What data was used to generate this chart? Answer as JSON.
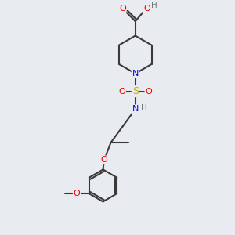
{
  "bg_color": "#e8ecf0",
  "atom_colors": {
    "C": "#3a3a3a",
    "N": "#0000ee",
    "O": "#ee0000",
    "S": "#ccaa00",
    "H": "#707878"
  },
  "bond_color": "#3a3a3a",
  "bond_width": 1.5,
  "figsize": [
    3.0,
    3.0
  ],
  "dpi": 100
}
